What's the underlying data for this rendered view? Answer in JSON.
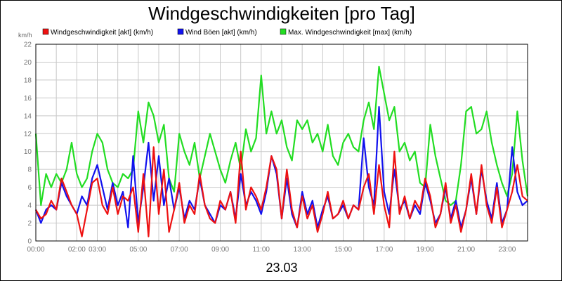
{
  "chart_data": {
    "type": "line",
    "title": "Windgeschwindigkeiten [pro Tag]",
    "unit_label": "km/h",
    "date_label": "23.03",
    "ylim": [
      0,
      22
    ],
    "y_ticks": [
      0,
      2,
      4,
      6,
      8,
      10,
      12,
      14,
      16,
      18,
      20,
      22
    ],
    "xlim_hours": [
      0,
      24
    ],
    "x_tick_labels": [
      "00:00",
      "02:00",
      "03:00",
      "05:00",
      "07:00",
      "09:00",
      "11:00",
      "13:00",
      "15:00",
      "17:00",
      "19:00",
      "21:00",
      "23:00"
    ],
    "x_tick_hours": [
      0,
      2,
      3,
      5,
      7,
      9,
      11,
      13,
      15,
      17,
      19,
      21,
      23
    ],
    "grid": true,
    "legend_position": "top",
    "series": [
      {
        "name": "Windgeschwindigkeit [akt] (km/h)",
        "color": "#ee1111",
        "x": [
          0.0,
          0.25,
          0.5,
          0.75,
          1.0,
          1.25,
          1.5,
          1.75,
          2.0,
          2.25,
          2.5,
          2.75,
          3.0,
          3.25,
          3.5,
          3.75,
          4.0,
          4.25,
          4.5,
          4.75,
          5.0,
          5.25,
          5.5,
          5.75,
          6.0,
          6.25,
          6.5,
          6.75,
          7.0,
          7.25,
          7.5,
          7.75,
          8.0,
          8.25,
          8.5,
          8.75,
          9.0,
          9.25,
          9.5,
          9.75,
          10.0,
          10.25,
          10.5,
          10.75,
          11.0,
          11.25,
          11.5,
          11.75,
          12.0,
          12.25,
          12.5,
          12.75,
          13.0,
          13.25,
          13.5,
          13.75,
          14.0,
          14.25,
          14.5,
          14.75,
          15.0,
          15.25,
          15.5,
          15.75,
          16.0,
          16.25,
          16.5,
          16.75,
          17.0,
          17.25,
          17.5,
          17.75,
          18.0,
          18.25,
          18.5,
          18.75,
          19.0,
          19.25,
          19.5,
          19.75,
          20.0,
          20.25,
          20.5,
          20.75,
          21.0,
          21.25,
          21.5,
          21.75,
          22.0,
          22.25,
          22.5,
          22.75,
          23.0,
          23.25,
          23.5,
          23.75,
          24.0
        ],
        "y": [
          3.5,
          2.5,
          3.0,
          4.5,
          3.5,
          7.0,
          5.5,
          4.0,
          3.0,
          0.5,
          3.5,
          6.5,
          7.0,
          4.0,
          3.0,
          6.0,
          3.0,
          5.0,
          4.5,
          6.0,
          1.0,
          7.5,
          0.5,
          10.5,
          3.0,
          8.0,
          1.0,
          3.5,
          6.5,
          2.0,
          4.0,
          3.0,
          7.5,
          4.0,
          2.5,
          2.0,
          4.5,
          3.5,
          5.5,
          2.0,
          10.0,
          3.5,
          6.0,
          5.0,
          3.5,
          6.0,
          9.5,
          8.0,
          2.5,
          8.0,
          3.5,
          1.5,
          5.0,
          2.5,
          4.0,
          1.0,
          3.0,
          5.5,
          2.5,
          3.0,
          4.5,
          2.5,
          4.0,
          3.5,
          6.0,
          7.5,
          3.0,
          8.5,
          4.0,
          1.5,
          10.0,
          3.0,
          5.0,
          2.5,
          4.5,
          3.5,
          7.0,
          5.0,
          1.5,
          3.0,
          6.5,
          2.0,
          4.0,
          1.0,
          3.5,
          7.5,
          3.0,
          8.5,
          4.0,
          2.0,
          6.0,
          1.5,
          3.5,
          5.5,
          8.5,
          5.0,
          4.5
        ],
        "values": [
          3.5,
          2.5,
          3.0,
          4.5,
          3.5,
          7.0,
          5.5,
          4.0,
          3.0,
          0.5,
          3.5,
          6.5,
          7.0,
          4.0,
          3.0,
          6.0,
          3.0,
          5.0,
          4.5,
          6.0,
          1.0,
          7.5,
          0.5,
          10.5,
          3.0,
          8.0,
          1.0,
          3.5,
          6.5,
          2.0,
          4.0,
          3.0,
          7.5,
          4.0,
          2.5,
          2.0,
          4.5,
          3.5,
          5.5,
          2.0,
          10.0,
          3.5,
          6.0,
          5.0,
          3.5,
          6.0,
          9.5,
          8.0,
          2.5,
          8.0,
          3.5,
          1.5,
          5.0,
          2.5,
          4.0,
          1.0,
          3.0,
          5.5,
          2.5,
          3.0,
          4.5,
          2.5,
          4.0,
          3.5,
          6.0,
          7.5,
          3.0,
          8.5,
          4.0,
          1.5,
          10.0,
          3.0,
          5.0,
          2.5,
          4.5,
          3.5,
          7.0,
          5.0,
          1.5,
          3.0,
          6.5,
          2.0,
          4.0,
          1.0,
          3.5,
          7.5,
          3.0,
          8.5,
          4.0,
          2.0,
          6.0,
          1.5,
          3.5,
          5.5,
          8.5,
          5.0,
          4.5
        ]
      },
      {
        "name": "Wind Böen [akt] (km/h)",
        "color": "#1111ee",
        "x": [
          0.0,
          0.25,
          0.5,
          0.75,
          1.0,
          1.25,
          1.5,
          1.75,
          2.0,
          2.25,
          2.5,
          2.75,
          3.0,
          3.25,
          3.5,
          3.75,
          4.0,
          4.25,
          4.5,
          4.75,
          5.0,
          5.25,
          5.5,
          5.75,
          6.0,
          6.25,
          6.5,
          6.75,
          7.0,
          7.25,
          7.5,
          7.75,
          8.0,
          8.25,
          8.5,
          8.75,
          9.0,
          9.25,
          9.5,
          9.75,
          10.0,
          10.25,
          10.5,
          10.75,
          11.0,
          11.25,
          11.5,
          11.75,
          12.0,
          12.25,
          12.5,
          12.75,
          13.0,
          13.25,
          13.5,
          13.75,
          14.0,
          14.25,
          14.5,
          14.75,
          15.0,
          15.25,
          15.5,
          15.75,
          16.0,
          16.25,
          16.5,
          16.75,
          17.0,
          17.25,
          17.5,
          17.75,
          18.0,
          18.25,
          18.5,
          18.75,
          19.0,
          19.25,
          19.5,
          19.75,
          20.0,
          20.25,
          20.5,
          20.75,
          21.0,
          21.25,
          21.5,
          21.75,
          22.0,
          22.25,
          22.5,
          22.75,
          23.0,
          23.25,
          23.5,
          23.75,
          24.0
        ],
        "y": [
          3.5,
          2.0,
          3.5,
          4.0,
          3.5,
          6.5,
          5.0,
          4.0,
          3.0,
          5.0,
          4.0,
          7.0,
          8.5,
          6.0,
          3.5,
          6.5,
          4.0,
          5.5,
          1.5,
          9.5,
          2.0,
          6.0,
          11.0,
          4.5,
          9.5,
          4.0,
          7.0,
          3.5,
          6.0,
          2.5,
          4.5,
          3.5,
          7.0,
          4.0,
          3.0,
          2.0,
          4.0,
          3.5,
          5.5,
          2.5,
          7.5,
          4.0,
          5.5,
          4.5,
          3.0,
          5.5,
          9.5,
          7.5,
          2.5,
          7.0,
          3.0,
          1.5,
          5.5,
          3.0,
          4.5,
          1.5,
          3.5,
          5.0,
          2.5,
          3.0,
          4.0,
          2.5,
          4.0,
          3.5,
          11.5,
          6.0,
          4.0,
          15.0,
          5.5,
          3.0,
          8.0,
          3.5,
          4.5,
          2.5,
          4.0,
          3.0,
          6.5,
          4.5,
          2.0,
          3.0,
          6.0,
          2.5,
          4.5,
          1.5,
          3.5,
          7.0,
          3.0,
          8.0,
          4.5,
          2.5,
          6.5,
          2.0,
          3.5,
          10.5,
          5.5,
          4.0,
          4.5
        ],
        "values": [
          3.5,
          2.0,
          3.5,
          4.0,
          3.5,
          6.5,
          5.0,
          4.0,
          3.0,
          5.0,
          4.0,
          7.0,
          8.5,
          6.0,
          3.5,
          6.5,
          4.0,
          5.5,
          1.5,
          9.5,
          2.0,
          6.0,
          11.0,
          4.5,
          9.5,
          4.0,
          7.0,
          3.5,
          6.0,
          2.5,
          4.5,
          3.5,
          7.0,
          4.0,
          3.0,
          2.0,
          4.0,
          3.5,
          5.5,
          2.5,
          7.5,
          4.0,
          5.5,
          4.5,
          3.0,
          5.5,
          9.5,
          7.5,
          2.5,
          7.0,
          3.0,
          1.5,
          5.5,
          3.0,
          4.5,
          1.5,
          3.5,
          5.0,
          2.5,
          3.0,
          4.0,
          2.5,
          4.0,
          3.5,
          11.5,
          6.0,
          4.0,
          15.0,
          5.5,
          3.0,
          8.0,
          3.5,
          4.5,
          2.5,
          4.0,
          3.0,
          6.5,
          4.5,
          2.0,
          3.0,
          6.0,
          2.5,
          4.5,
          1.5,
          3.5,
          7.0,
          3.0,
          8.0,
          4.5,
          2.5,
          6.5,
          2.0,
          3.5,
          10.5,
          5.5,
          4.0,
          4.5
        ]
      },
      {
        "name": "Max. Windgeschwindigkeit [max] (km/h)",
        "color": "#22dd22",
        "x": [
          0.0,
          0.25,
          0.5,
          0.75,
          1.0,
          1.25,
          1.5,
          1.75,
          2.0,
          2.25,
          2.5,
          2.75,
          3.0,
          3.25,
          3.5,
          3.75,
          4.0,
          4.25,
          4.5,
          4.75,
          5.0,
          5.25,
          5.5,
          5.75,
          6.0,
          6.25,
          6.5,
          6.75,
          7.0,
          7.25,
          7.5,
          7.75,
          8.0,
          8.25,
          8.5,
          8.75,
          9.0,
          9.25,
          9.5,
          9.75,
          10.0,
          10.25,
          10.5,
          10.75,
          11.0,
          11.25,
          11.5,
          11.75,
          12.0,
          12.25,
          12.5,
          12.75,
          13.0,
          13.25,
          13.5,
          13.75,
          14.0,
          14.25,
          14.5,
          14.75,
          15.0,
          15.25,
          15.5,
          15.75,
          16.0,
          16.25,
          16.5,
          16.75,
          17.0,
          17.25,
          17.5,
          17.75,
          18.0,
          18.25,
          18.5,
          18.75,
          19.0,
          19.25,
          19.5,
          19.75,
          20.0,
          20.25,
          20.5,
          20.75,
          21.0,
          21.25,
          21.5,
          21.75,
          22.0,
          22.25,
          22.5,
          22.75,
          23.0,
          23.25,
          23.5,
          23.75,
          24.0
        ],
        "y": [
          12.0,
          4.0,
          7.5,
          6.0,
          7.5,
          6.5,
          8.0,
          11.0,
          7.5,
          6.0,
          7.0,
          10.0,
          12.0,
          11.0,
          8.0,
          6.5,
          6.0,
          7.5,
          7.0,
          8.0,
          14.5,
          11.0,
          15.5,
          14.0,
          11.0,
          13.0,
          7.0,
          5.5,
          12.0,
          10.0,
          8.5,
          11.0,
          7.0,
          9.5,
          12.0,
          10.0,
          8.0,
          6.5,
          9.0,
          11.0,
          8.0,
          12.5,
          10.0,
          11.5,
          18.5,
          12.0,
          14.5,
          12.0,
          13.5,
          10.5,
          9.0,
          13.5,
          12.5,
          13.5,
          11.0,
          12.0,
          10.0,
          13.0,
          9.5,
          8.5,
          11.0,
          12.0,
          10.5,
          10.0,
          13.5,
          15.5,
          12.5,
          19.5,
          16.5,
          13.5,
          15.0,
          10.0,
          11.0,
          9.0,
          10.0,
          6.5,
          6.0,
          13.0,
          9.5,
          7.0,
          4.5,
          4.0,
          4.5,
          8.5,
          14.5,
          15.0,
          12.0,
          12.5,
          14.5,
          11.0,
          8.5,
          6.5,
          5.0,
          7.5,
          14.5,
          9.0,
          5.0
        ],
        "values": [
          12.0,
          4.0,
          7.5,
          6.0,
          7.5,
          6.5,
          8.0,
          11.0,
          7.5,
          6.0,
          7.0,
          10.0,
          12.0,
          11.0,
          8.0,
          6.5,
          6.0,
          7.5,
          7.0,
          8.0,
          14.5,
          11.0,
          15.5,
          14.0,
          11.0,
          13.0,
          7.0,
          5.5,
          12.0,
          10.0,
          8.5,
          11.0,
          7.0,
          9.5,
          12.0,
          10.0,
          8.0,
          6.5,
          9.0,
          11.0,
          8.0,
          12.5,
          10.0,
          11.5,
          18.5,
          12.0,
          14.5,
          12.0,
          13.5,
          10.5,
          9.0,
          13.5,
          12.5,
          13.5,
          11.0,
          12.0,
          10.0,
          13.0,
          9.5,
          8.5,
          11.0,
          12.0,
          10.5,
          10.0,
          13.5,
          15.5,
          12.5,
          19.5,
          16.5,
          13.5,
          15.0,
          10.0,
          11.0,
          9.0,
          10.0,
          6.5,
          6.0,
          13.0,
          9.5,
          7.0,
          4.5,
          4.0,
          4.5,
          8.5,
          14.5,
          15.0,
          12.0,
          12.5,
          14.5,
          11.0,
          8.5,
          6.5,
          5.0,
          7.5,
          14.5,
          9.0,
          5.0
        ]
      }
    ]
  }
}
